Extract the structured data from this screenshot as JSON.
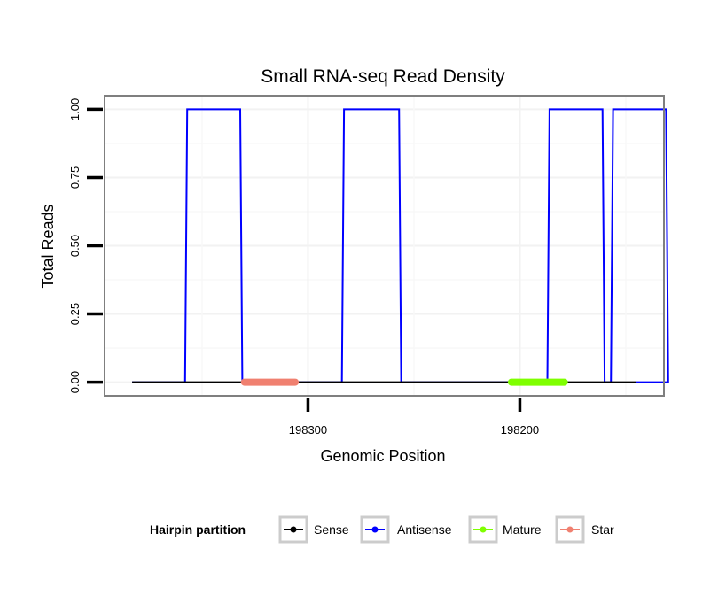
{
  "chart_data": {
    "type": "line",
    "title": "Small RNA-seq Read Density",
    "xlabel": "Genomic Position",
    "ylabel": "Total Reads",
    "x_reversed": true,
    "xlim": [
      198396,
      198132
    ],
    "ylim": [
      -0.05,
      1.05
    ],
    "x_ticks": [
      198300,
      198200
    ],
    "x_tick_labels": [
      "198300",
      "198200"
    ],
    "y_ticks": [
      0,
      0.25,
      0.5,
      0.75,
      1.0
    ],
    "y_tick_labels": [
      "0.00",
      "0.25",
      "0.50",
      "0.75",
      "1.00"
    ],
    "grid": true,
    "legend": {
      "title": "Hairpin partition",
      "position": "bottom",
      "entries": [
        "Sense",
        "Antisense",
        "Mature",
        "Star"
      ]
    },
    "colors": {
      "Sense": "#000000",
      "Antisense": "#0000ff",
      "Mature": "#7fff00",
      "Star": "#f08070"
    },
    "series": [
      {
        "name": "Sense",
        "points": [
          [
            198383,
            0
          ],
          [
            198145,
            0
          ]
        ]
      },
      {
        "name": "Antisense",
        "points": [
          [
            198383,
            0
          ],
          [
            198358,
            0
          ],
          [
            198357,
            1
          ],
          [
            198332,
            1
          ],
          [
            198331,
            0
          ],
          [
            198284,
            0
          ],
          [
            198283,
            1
          ],
          [
            198257,
            1
          ],
          [
            198256,
            0
          ],
          [
            198187,
            0
          ],
          [
            198186,
            1
          ],
          [
            198161,
            1
          ],
          [
            198160,
            0
          ],
          [
            198157,
            0
          ],
          [
            198156,
            1
          ],
          [
            198131,
            1
          ],
          [
            198130,
            0
          ],
          [
            198145,
            0
          ]
        ]
      },
      {
        "name": "Mature",
        "segment": [
          198204,
          198179
        ],
        "y": 0
      },
      {
        "name": "Star",
        "segment": [
          198330,
          198306
        ],
        "y": 0
      }
    ]
  }
}
